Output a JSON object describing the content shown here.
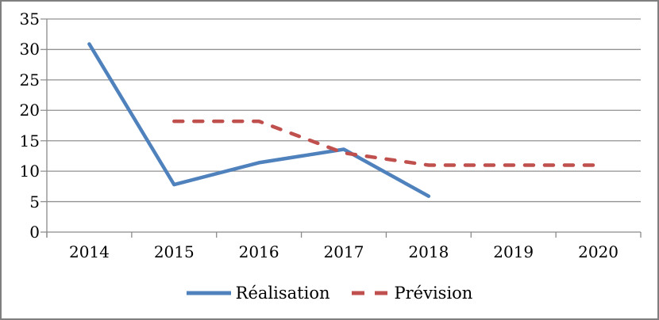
{
  "chart_data": {
    "type": "line",
    "categories": [
      "2014",
      "2015",
      "2016",
      "2017",
      "2018",
      "2019",
      "2020"
    ],
    "series": [
      {
        "name": "Réalisation",
        "color": "#4F81BD",
        "style": "solid",
        "values": [
          30.9,
          7.8,
          11.4,
          13.6,
          5.9,
          null,
          null
        ]
      },
      {
        "name": "Prévision",
        "color": "#C0504D",
        "style": "dashed",
        "values": [
          null,
          18.2,
          18.2,
          13,
          11,
          11,
          11
        ]
      }
    ],
    "yticks": [
      35,
      30,
      25,
      20,
      15,
      10,
      5,
      0
    ],
    "ylim": [
      0,
      35
    ],
    "grid": true,
    "legend_position": "bottom"
  },
  "colors": {
    "gridline": "#919191",
    "axis": "#8a8a8a",
    "text": "#000000",
    "border": "#7f7f7f",
    "background": "#ffffff"
  }
}
